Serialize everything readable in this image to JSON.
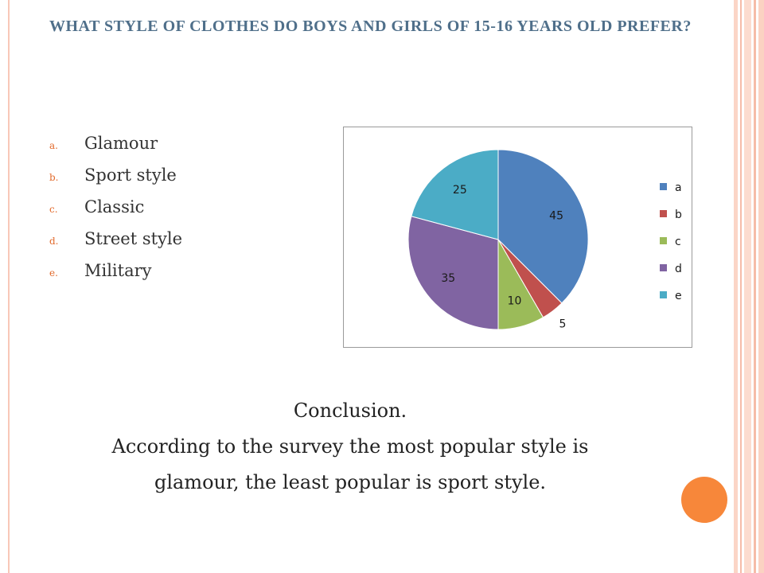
{
  "slide": {
    "title": "WHAT STYLE OF CLOTHES DO BOYS AND GIRLS OF 15-16 YEARS OLD PREFER?",
    "options": [
      {
        "letter": "a.",
        "label": "Glamour"
      },
      {
        "letter": "b.",
        "label": "Sport style"
      },
      {
        "letter": "c.",
        "label": "Classic"
      },
      {
        "letter": "d.",
        "label": "Street style"
      },
      {
        "letter": "e.",
        "label": "Military"
      }
    ],
    "conclusion_heading": "Conclusion.",
    "conclusion_line1": "According to the survey the most popular style is",
    "conclusion_line2": "glamour, the least popular is sport style."
  },
  "chart_data": {
    "type": "pie",
    "categories": [
      "a",
      "b",
      "c",
      "d",
      "e"
    ],
    "values": [
      45,
      5,
      10,
      35,
      25
    ],
    "colors": [
      "#4f81bd",
      "#c0504d",
      "#9bbb59",
      "#8064a2",
      "#4bacc6"
    ],
    "legend": "right",
    "data_labels": true
  },
  "theme": {
    "accent": "#f7873a",
    "title_color": "#4f6f8a",
    "bullet_color": "#e26a2c"
  }
}
